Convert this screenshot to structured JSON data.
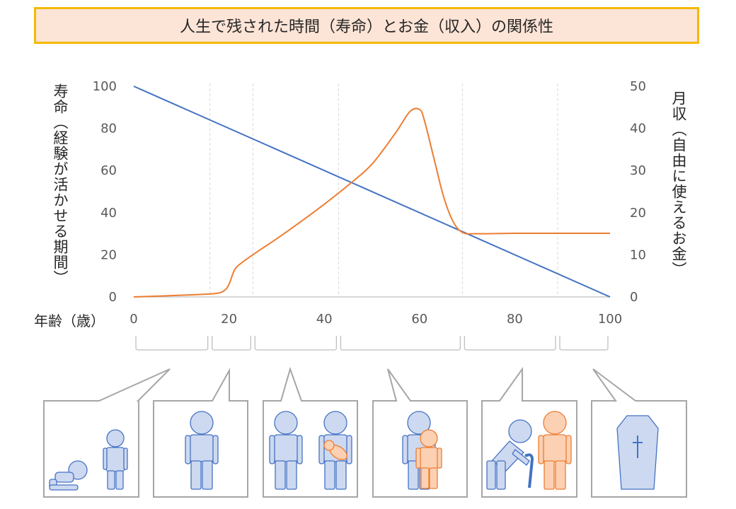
{
  "title": "人生で残された時間（寿命）とお金（収入）の関係性",
  "colors": {
    "lifespan": "#4472c4",
    "income": "#ed7d31",
    "grid": "#d9d9d9",
    "person_blue_fill": "#cdd9f0",
    "person_orange_fill": "#fbd0b3"
  },
  "chart_data": {
    "type": "line",
    "xlabel": "年齢（歳）",
    "ylabel": "寿命（経験が活かせる期間）",
    "ylabel_right": "月収（自由に使えるお金）",
    "xlim": [
      0,
      100
    ],
    "ylim": [
      0,
      100
    ],
    "ylim_right": [
      0,
      50
    ],
    "x_ticks": [
      0,
      20,
      40,
      60,
      80,
      100
    ],
    "y_ticks": [
      0,
      20,
      40,
      60,
      80,
      100
    ],
    "y_ticks_right": [
      0,
      10,
      20,
      30,
      40,
      50
    ],
    "period_boundaries": [
      16,
      25,
      43,
      69,
      89
    ],
    "series": [
      {
        "axis": "left",
        "x": [
          0,
          100
        ],
        "y": [
          100,
          0
        ]
      },
      {
        "axis": "right",
        "x": [
          0,
          10,
          17,
          19,
          20,
          21,
          22,
          25,
          30,
          35,
          40,
          45,
          50,
          55,
          58,
          60,
          61,
          63,
          65,
          67,
          69,
          72,
          80,
          90,
          100
        ],
        "y": [
          0,
          0.4,
          0.8,
          1.5,
          3.0,
          6.0,
          7.5,
          10.0,
          13.8,
          17.8,
          22.0,
          26.5,
          31.5,
          39.0,
          44.0,
          44.5,
          42.0,
          33.0,
          24.0,
          18.0,
          15.3,
          15.0,
          15.1,
          15.1,
          15.1
        ]
      }
    ]
  }
}
